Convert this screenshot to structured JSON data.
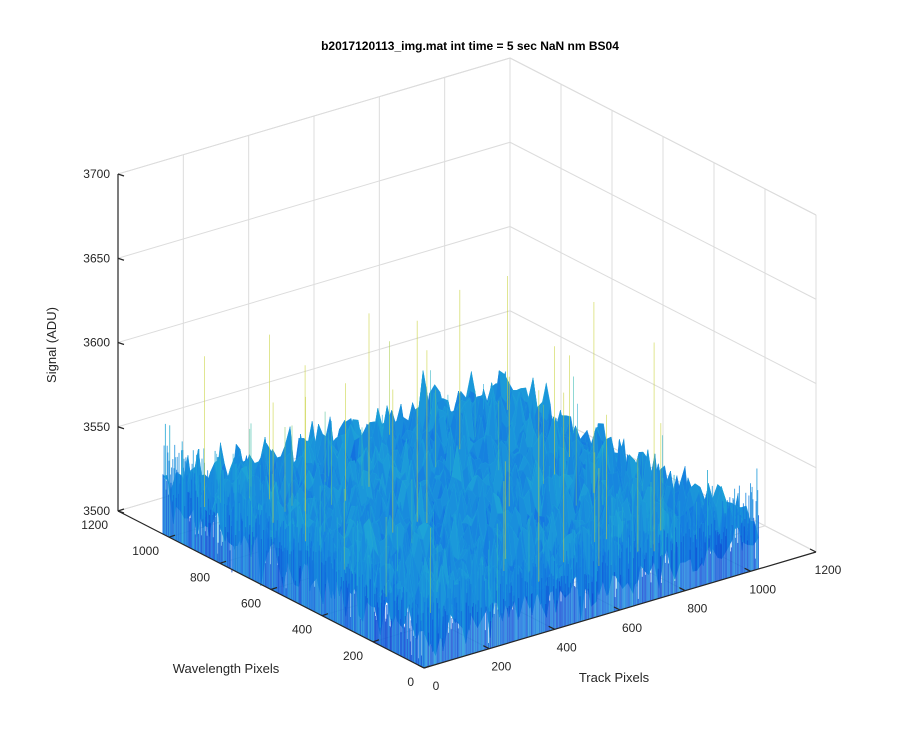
{
  "chart_data": {
    "type": "surface",
    "title": "b2017120113_img.mat int time = 5 sec  NaN nm BS04",
    "xlabel": "Track Pixels",
    "ylabel": "Wavelength Pixels",
    "zlabel": "Signal (ADU)",
    "xlim": [
      0,
      1200
    ],
    "ylim": [
      0,
      1200
    ],
    "zlim": [
      3500,
      3700
    ],
    "x_ticks": [
      "0",
      "200",
      "400",
      "600",
      "800",
      "1000",
      "1200"
    ],
    "y_ticks": [
      "0",
      "200",
      "400",
      "600",
      "800",
      "1000",
      "1200"
    ],
    "z_ticks": [
      "3500",
      "3550",
      "3600",
      "3650",
      "3700"
    ],
    "data_extent": {
      "x": [
        0,
        1024
      ],
      "y": [
        0,
        1024
      ]
    },
    "signal_mean": 3525,
    "signal_spread": 10,
    "signal_peak": 3660,
    "grid": true,
    "colormap": "parula"
  }
}
